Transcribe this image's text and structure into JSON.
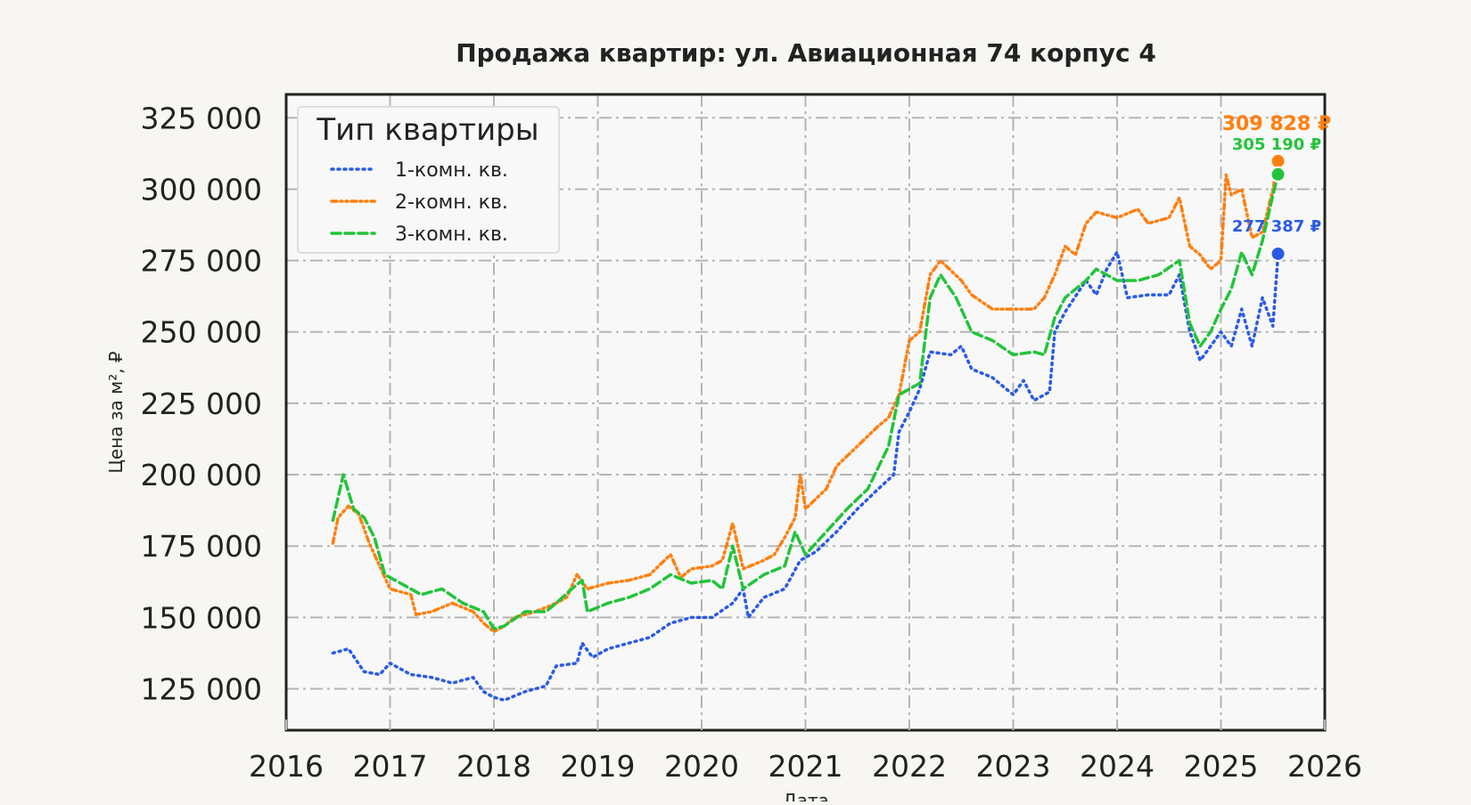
{
  "chart_data": {
    "type": "line",
    "title": "Продажа квартир: ул. Авиационная 74 корпус 4",
    "xlabel": "Дата",
    "ylabel": "Цена за м², ₽",
    "xlim": [
      2016.0,
      2026.0
    ],
    "ylim": [
      110500,
      333200
    ],
    "x_ticks": [
      2016,
      2017,
      2018,
      2019,
      2020,
      2021,
      2022,
      2023,
      2024,
      2025,
      2026
    ],
    "x_tick_labels": [
      "2016",
      "2017",
      "2018",
      "2019",
      "2020",
      "2021",
      "2022",
      "2023",
      "2024",
      "2025",
      "2026"
    ],
    "y_ticks": [
      125000,
      150000,
      175000,
      200000,
      225000,
      250000,
      275000,
      300000,
      325000
    ],
    "y_tick_labels": [
      "125 000",
      "150 000",
      "175 000",
      "200 000",
      "225 000",
      "250 000",
      "275 000",
      "300 000",
      "325 000"
    ],
    "grid": true,
    "legend": {
      "title": "Тип квартиры",
      "placement": "upper-left"
    },
    "series": [
      {
        "name": "1-комн. кв.",
        "color": "#2a5be8",
        "style": "dotted",
        "x": [
          2016.45,
          2016.6,
          2016.75,
          2016.9,
          2017.0,
          2017.2,
          2017.4,
          2017.6,
          2017.8,
          2017.9,
          2018.0,
          2018.1,
          2018.3,
          2018.5,
          2018.6,
          2018.8,
          2018.85,
          2018.95,
          2019.1,
          2019.3,
          2019.5,
          2019.7,
          2019.9,
          2020.1,
          2020.3,
          2020.4,
          2020.45,
          2020.6,
          2020.8,
          2020.95,
          2021.1,
          2021.3,
          2021.5,
          2021.7,
          2021.85,
          2021.9,
          2022.0,
          2022.1,
          2022.2,
          2022.4,
          2022.5,
          2022.6,
          2022.8,
          2023.0,
          2023.1,
          2023.2,
          2023.35,
          2023.4,
          2023.5,
          2023.7,
          2023.8,
          2023.9,
          2024.0,
          2024.1,
          2024.3,
          2024.5,
          2024.6,
          2024.7,
          2024.8,
          2024.9,
          2025.0,
          2025.1,
          2025.2,
          2025.3,
          2025.4,
          2025.5,
          2025.55
        ],
        "y": [
          137500,
          139000,
          131000,
          130000,
          134000,
          130000,
          129000,
          127000,
          129000,
          124000,
          122000,
          121000,
          124000,
          126000,
          133000,
          134000,
          141000,
          136000,
          139000,
          141000,
          143000,
          148000,
          150000,
          150000,
          155000,
          160000,
          150000,
          157000,
          160000,
          170000,
          173000,
          180000,
          188000,
          195000,
          200000,
          215000,
          222000,
          230000,
          243000,
          242000,
          245000,
          237000,
          234000,
          228000,
          233000,
          226000,
          229000,
          250000,
          257000,
          268000,
          263000,
          272000,
          278000,
          262000,
          263000,
          263000,
          270000,
          250000,
          240000,
          245000,
          250000,
          245000,
          258000,
          245000,
          262000,
          252000,
          277387
        ],
        "last_label": "277 387 ₽",
        "last_value": 277387
      },
      {
        "name": "2-комн. кв.",
        "color": "#ff7f0e",
        "style": "dash-dot-dotted",
        "x": [
          2016.45,
          2016.5,
          2016.6,
          2016.7,
          2016.8,
          2016.9,
          2017.0,
          2017.2,
          2017.25,
          2017.4,
          2017.6,
          2017.8,
          2017.9,
          2018.0,
          2018.1,
          2018.2,
          2018.4,
          2018.6,
          2018.7,
          2018.8,
          2018.9,
          2019.1,
          2019.3,
          2019.5,
          2019.7,
          2019.8,
          2019.9,
          2020.1,
          2020.2,
          2020.3,
          2020.4,
          2020.6,
          2020.7,
          2020.8,
          2020.9,
          2020.95,
          2021.0,
          2021.2,
          2021.3,
          2021.5,
          2021.7,
          2021.8,
          2021.9,
          2022.0,
          2022.1,
          2022.2,
          2022.3,
          2022.5,
          2022.6,
          2022.8,
          2023.0,
          2023.2,
          2023.3,
          2023.4,
          2023.5,
          2023.6,
          2023.7,
          2023.8,
          2024.0,
          2024.2,
          2024.3,
          2024.5,
          2024.6,
          2024.7,
          2024.8,
          2024.9,
          2025.0,
          2025.05,
          2025.1,
          2025.2,
          2025.3,
          2025.4,
          2025.5,
          2025.55
        ],
        "y": [
          176000,
          185000,
          189000,
          186000,
          176000,
          168000,
          160000,
          158000,
          151000,
          152000,
          155000,
          152000,
          148000,
          145000,
          147000,
          150000,
          152000,
          155000,
          157000,
          165000,
          160000,
          162000,
          163000,
          165000,
          172000,
          164000,
          167000,
          168000,
          170000,
          183000,
          167000,
          170000,
          172000,
          178000,
          185000,
          200000,
          188000,
          195000,
          203000,
          210000,
          217000,
          220000,
          228000,
          247000,
          250000,
          270000,
          275000,
          268000,
          263000,
          258000,
          258000,
          258000,
          262000,
          270000,
          280000,
          277000,
          288000,
          292000,
          290000,
          293000,
          288000,
          290000,
          297000,
          280000,
          277000,
          272000,
          275000,
          305000,
          298000,
          300000,
          283000,
          285000,
          300000,
          309828
        ],
        "last_label": "309 828 ₽",
        "last_value": 309828
      },
      {
        "name": "3-комн. кв.",
        "color": "#22c43a",
        "style": "dashed",
        "x": [
          2016.45,
          2016.55,
          2016.65,
          2016.75,
          2016.85,
          2016.95,
          2017.1,
          2017.3,
          2017.5,
          2017.7,
          2017.9,
          2018.0,
          2018.1,
          2018.3,
          2018.5,
          2018.6,
          2018.75,
          2018.85,
          2018.9,
          2019.1,
          2019.3,
          2019.5,
          2019.7,
          2019.9,
          2020.1,
          2020.2,
          2020.3,
          2020.4,
          2020.6,
          2020.8,
          2020.9,
          2021.0,
          2021.2,
          2021.4,
          2021.6,
          2021.8,
          2021.9,
          2022.1,
          2022.2,
          2022.3,
          2022.45,
          2022.6,
          2022.8,
          2023.0,
          2023.2,
          2023.3,
          2023.4,
          2023.5,
          2023.7,
          2023.8,
          2024.0,
          2024.2,
          2024.4,
          2024.6,
          2024.7,
          2024.8,
          2024.9,
          2025.0,
          2025.1,
          2025.2,
          2025.3,
          2025.4,
          2025.5,
          2025.55
        ],
        "y": [
          184000,
          200000,
          188000,
          185000,
          178000,
          165000,
          162000,
          158000,
          160000,
          155000,
          152000,
          146000,
          147000,
          152000,
          152000,
          155000,
          160000,
          163000,
          152000,
          155000,
          157000,
          160000,
          165000,
          162000,
          163000,
          160000,
          175000,
          160000,
          165000,
          168000,
          180000,
          172000,
          180000,
          188000,
          195000,
          210000,
          228000,
          232000,
          262000,
          270000,
          262000,
          250000,
          247000,
          242000,
          243000,
          242000,
          255000,
          262000,
          268000,
          272000,
          268000,
          268000,
          270000,
          275000,
          253000,
          245000,
          250000,
          258000,
          265000,
          278000,
          270000,
          282000,
          298000,
          305190
        ],
        "last_label": "305 190 ₽",
        "last_value": 305190
      }
    ]
  }
}
